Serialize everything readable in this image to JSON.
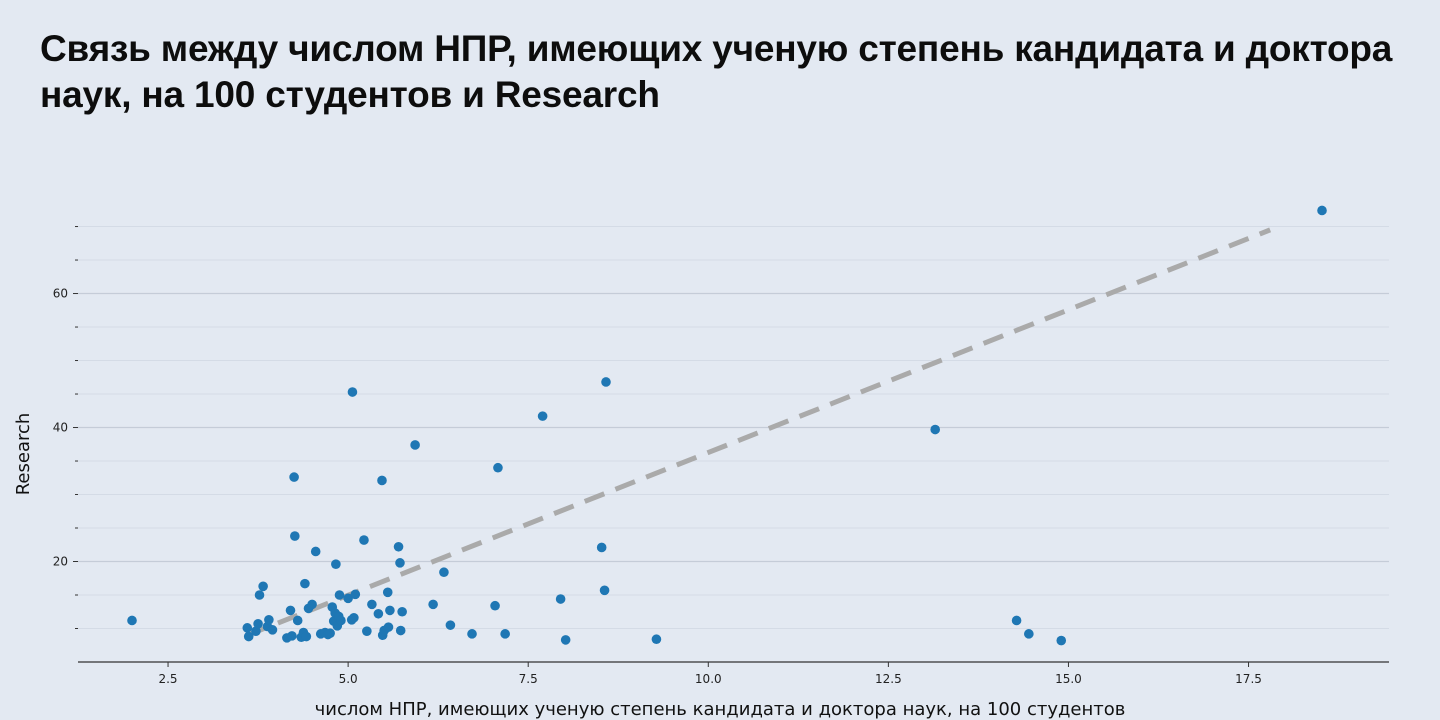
{
  "title_lines": [
    "Связь между числом НПР, имеющих ученую степень кандидата и доктора",
    "наук, на 100 студентов и Research"
  ],
  "chart_data": {
    "type": "scatter",
    "title": "Связь между числом НПР, имеющих ученую степень кандидата и доктора наук, на 100 студентов и Research",
    "xlabel": "числом НПР, имеющих ученую степень кандидата и доктора наук, на 100 студентов",
    "ylabel": "Research",
    "xlim": [
      1.25,
      19.45
    ],
    "ylim": [
      5,
      76.2
    ],
    "x_ticks": [
      2.5,
      5.0,
      7.5,
      10.0,
      12.5,
      15.0,
      17.5
    ],
    "x_tick_labels": [
      "2.5",
      "5.0",
      "7.5",
      "10.0",
      "12.5",
      "15.0",
      "17.5"
    ],
    "y_ticks_major": [
      20,
      40,
      60
    ],
    "y_tick_labels": [
      "20",
      "40",
      "60"
    ],
    "y_ticks_minor": [
      10,
      15,
      25,
      30,
      35,
      45,
      50,
      55,
      65,
      70
    ],
    "grid": true,
    "point_color": "#1f77b4",
    "trend_color": "#aaaaaa",
    "trendline": {
      "x": [
        3.6,
        17.8
      ],
      "y": [
        9.0,
        69.5
      ]
    },
    "points": [
      {
        "x": 2.0,
        "y": 11.2
      },
      {
        "x": 3.6,
        "y": 10.1
      },
      {
        "x": 3.62,
        "y": 8.8
      },
      {
        "x": 3.72,
        "y": 9.6
      },
      {
        "x": 3.75,
        "y": 10.7
      },
      {
        "x": 3.77,
        "y": 15.0
      },
      {
        "x": 3.82,
        "y": 16.3
      },
      {
        "x": 3.88,
        "y": 10.3
      },
      {
        "x": 3.9,
        "y": 11.3
      },
      {
        "x": 3.95,
        "y": 9.8
      },
      {
        "x": 4.15,
        "y": 8.6
      },
      {
        "x": 4.2,
        "y": 12.7
      },
      {
        "x": 4.22,
        "y": 8.9
      },
      {
        "x": 4.25,
        "y": 32.6
      },
      {
        "x": 4.26,
        "y": 23.8
      },
      {
        "x": 4.3,
        "y": 11.2
      },
      {
        "x": 4.35,
        "y": 8.7
      },
      {
        "x": 4.38,
        "y": 9.4
      },
      {
        "x": 4.4,
        "y": 16.7
      },
      {
        "x": 4.42,
        "y": 8.8
      },
      {
        "x": 4.45,
        "y": 13.0
      },
      {
        "x": 4.5,
        "y": 13.6
      },
      {
        "x": 4.55,
        "y": 21.5
      },
      {
        "x": 4.62,
        "y": 9.2
      },
      {
        "x": 4.68,
        "y": 9.4
      },
      {
        "x": 4.72,
        "y": 9.1
      },
      {
        "x": 4.75,
        "y": 9.3
      },
      {
        "x": 4.78,
        "y": 13.2
      },
      {
        "x": 4.8,
        "y": 11.1
      },
      {
        "x": 4.82,
        "y": 12.3
      },
      {
        "x": 4.83,
        "y": 19.6
      },
      {
        "x": 4.85,
        "y": 10.4
      },
      {
        "x": 4.87,
        "y": 11.8
      },
      {
        "x": 4.88,
        "y": 15.0
      },
      {
        "x": 4.9,
        "y": 11.2
      },
      {
        "x": 5.0,
        "y": 14.5
      },
      {
        "x": 5.05,
        "y": 11.3
      },
      {
        "x": 5.06,
        "y": 45.3
      },
      {
        "x": 5.08,
        "y": 11.6
      },
      {
        "x": 5.1,
        "y": 15.1
      },
      {
        "x": 5.22,
        "y": 23.2
      },
      {
        "x": 5.26,
        "y": 9.6
      },
      {
        "x": 5.33,
        "y": 13.6
      },
      {
        "x": 5.42,
        "y": 12.2
      },
      {
        "x": 5.47,
        "y": 32.1
      },
      {
        "x": 5.48,
        "y": 9.0
      },
      {
        "x": 5.5,
        "y": 9.7
      },
      {
        "x": 5.55,
        "y": 15.4
      },
      {
        "x": 5.56,
        "y": 10.2
      },
      {
        "x": 5.58,
        "y": 12.7
      },
      {
        "x": 5.7,
        "y": 22.2
      },
      {
        "x": 5.72,
        "y": 19.8
      },
      {
        "x": 5.73,
        "y": 9.7
      },
      {
        "x": 5.75,
        "y": 12.5
      },
      {
        "x": 5.93,
        "y": 37.4
      },
      {
        "x": 6.18,
        "y": 13.6
      },
      {
        "x": 6.33,
        "y": 18.4
      },
      {
        "x": 6.42,
        "y": 10.5
      },
      {
        "x": 6.72,
        "y": 9.2
      },
      {
        "x": 7.04,
        "y": 13.4
      },
      {
        "x": 7.08,
        "y": 34.0
      },
      {
        "x": 7.18,
        "y": 9.2
      },
      {
        "x": 7.7,
        "y": 41.7
      },
      {
        "x": 7.95,
        "y": 14.4
      },
      {
        "x": 8.02,
        "y": 8.3
      },
      {
        "x": 8.52,
        "y": 22.1
      },
      {
        "x": 8.56,
        "y": 15.7
      },
      {
        "x": 8.58,
        "y": 46.8
      },
      {
        "x": 9.28,
        "y": 8.4
      },
      {
        "x": 13.15,
        "y": 39.7
      },
      {
        "x": 14.28,
        "y": 11.2
      },
      {
        "x": 14.45,
        "y": 9.2
      },
      {
        "x": 14.9,
        "y": 8.2
      },
      {
        "x": 18.52,
        "y": 72.4
      }
    ]
  }
}
